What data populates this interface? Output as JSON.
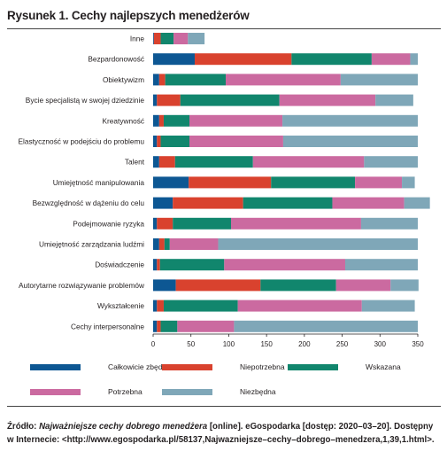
{
  "title": "Rysunek 1. Cechy najlepszych menedżerów",
  "colors": {
    "calkowicie_zbedna": "#0d5793",
    "niepotrzebna": "#d9422e",
    "wskazana": "#11866d",
    "potrzebna": "#cb6aa0",
    "niezbedna": "#7fa7b8"
  },
  "legend": [
    {
      "label": "Całkowicie zbędna",
      "color": "#0d5793"
    },
    {
      "label": "Niepotrzebna",
      "color": "#d9422e"
    },
    {
      "label": "Wskazana",
      "color": "#11866d"
    },
    {
      "label": "Potrzebna",
      "color": "#cb6aa0"
    },
    {
      "label": "Niezbędna",
      "color": "#7fa7b8"
    }
  ],
  "chart_data": {
    "type": "bar",
    "orientation": "horizontal",
    "stacked": true,
    "xlim": [
      0,
      350
    ],
    "xticks": [
      "0",
      "50",
      "100",
      "150",
      "200",
      "250",
      "300",
      "350"
    ],
    "grid": false,
    "legend_position": "bottom",
    "categories": [
      "Inne",
      "Bezpardonowość",
      "Obiektywizm",
      "Bycie specjalistą w swojej dziedzinie",
      "Kreatywność",
      "Elastyczność w podejściu do problemu",
      "Talent",
      "Umiejętność manipulowania",
      "Bezwzględność w dążeniu do celu",
      "Podejmowanie ryzyka",
      "Umiejętność zarządzania ludźmi",
      "Doświadczenie",
      "Autorytarne rozwiązywanie problemów",
      "Wykształcenie",
      "Cechy interpersonalne"
    ],
    "series": [
      {
        "name": "Całkowicie zbędna",
        "values": [
          1,
          55,
          8,
          5,
          8,
          5,
          8,
          47,
          26,
          5,
          8,
          5,
          30,
          5,
          5
        ]
      },
      {
        "name": "Niepotrzebna",
        "values": [
          9,
          128,
          8,
          31,
          6,
          5,
          21,
          109,
          93,
          21,
          7,
          4,
          112,
          9,
          5
        ]
      },
      {
        "name": "Wskazana",
        "values": [
          17,
          106,
          80,
          131,
          34,
          38,
          103,
          111,
          118,
          77,
          7,
          85,
          100,
          98,
          22
        ]
      },
      {
        "name": "Potrzebna",
        "values": [
          19,
          51,
          152,
          127,
          123,
          124,
          147,
          62,
          95,
          172,
          64,
          160,
          72,
          164,
          75
        ]
      },
      {
        "name": "Niezbędna",
        "values": [
          22,
          10,
          102,
          50,
          179,
          178,
          71,
          17,
          34,
          75,
          264,
          96,
          37,
          70,
          243
        ]
      }
    ]
  },
  "source": {
    "prefix": "Źródło: ",
    "italic": "Najważniejsze cechy dobrego menedżera",
    "rest": " [online]. eGospodarka [dostęp: 2020–03–20]. Dostępny w Internecie: <http://www.egospodarka.pl/58137,Najwazniejsze–cechy–dobrego–menedzera,1,39,1.html>."
  }
}
